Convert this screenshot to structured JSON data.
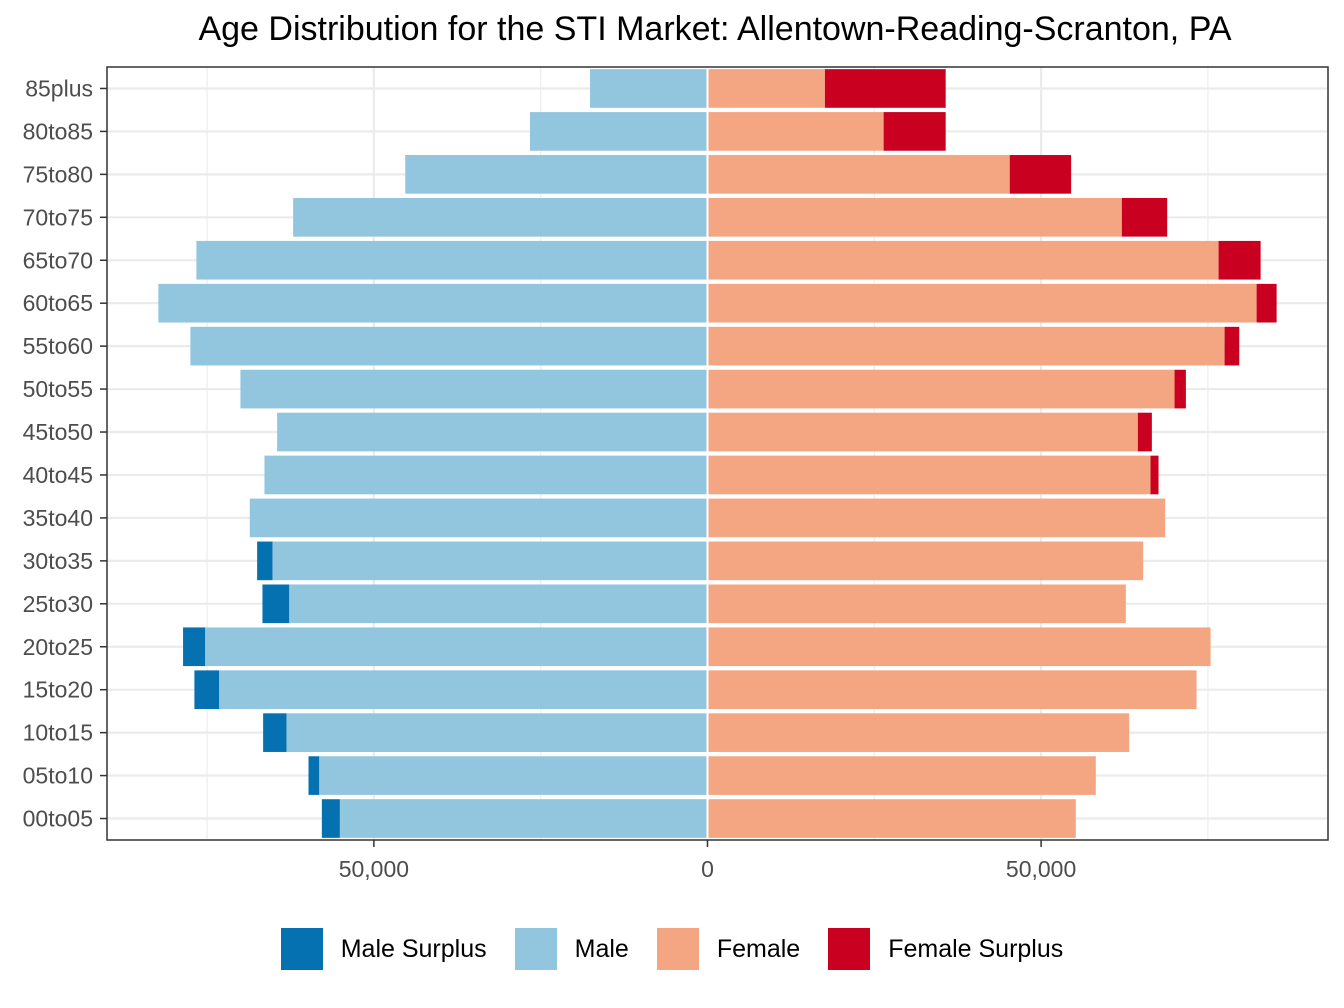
{
  "chart_data": {
    "type": "bar",
    "title": "Age Distribution for the STI Market: Allentown-Reading-Scranton, PA",
    "xlabel": "",
    "ylabel": "",
    "orientation": "horizontal",
    "xlim": [
      -90000,
      93000
    ],
    "xticks": [
      -50000,
      0,
      50000
    ],
    "xtick_labels": [
      "50,000",
      "0",
      "50,000"
    ],
    "grid": true,
    "legend_position": "bottom",
    "categories": [
      "00to05",
      "05to10",
      "10to15",
      "15to20",
      "20to25",
      "25to30",
      "30to35",
      "35to40",
      "40to45",
      "45to50",
      "50to55",
      "55to60",
      "60to65",
      "65to70",
      "70to75",
      "75to80",
      "80to85",
      "85plus"
    ],
    "series": [
      {
        "name": "Male Surplus",
        "color": "#0571b0",
        "values": [
          2700,
          1600,
          3500,
          3700,
          3300,
          4000,
          2300,
          0,
          0,
          0,
          0,
          0,
          0,
          0,
          0,
          0,
          0,
          0
        ]
      },
      {
        "name": "Male",
        "color": "#92c5de",
        "values": [
          55100,
          58200,
          63100,
          73200,
          75300,
          62700,
          65200,
          68600,
          66400,
          64500,
          70000,
          77500,
          82300,
          76600,
          62100,
          45300,
          26600,
          17600
        ]
      },
      {
        "name": "Female",
        "color": "#f4a582",
        "values": [
          55200,
          58200,
          63200,
          73300,
          75400,
          62700,
          65300,
          68600,
          66400,
          64500,
          70000,
          77500,
          82300,
          76600,
          62100,
          45300,
          26400,
          17600
        ]
      },
      {
        "name": "Female Surplus",
        "color": "#ca0020",
        "values": [
          0,
          0,
          0,
          0,
          0,
          0,
          0,
          0,
          1200,
          2100,
          1700,
          2200,
          3000,
          6300,
          6800,
          9200,
          9300,
          18100
        ]
      }
    ]
  }
}
